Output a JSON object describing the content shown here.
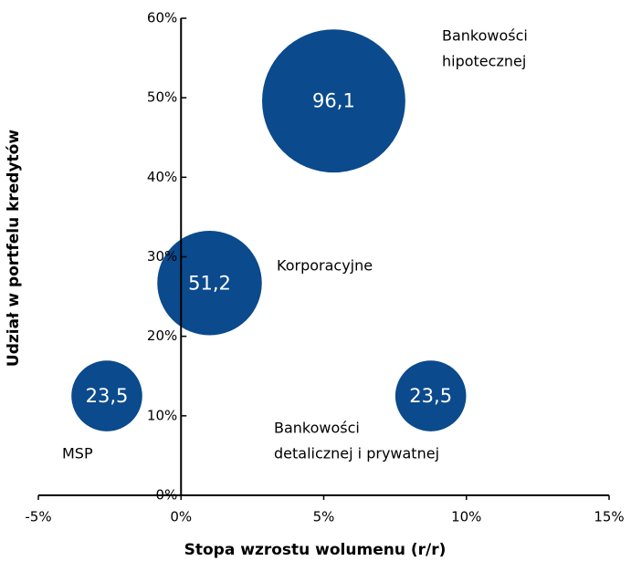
{
  "chart_data": {
    "type": "bubble",
    "x_label": "Stopa wzrostu wolumenu (r/r)",
    "y_label": "Udział w portfelu kredytów",
    "labels": [
      [
        "Bankowości",
        "hipotecznej"
      ],
      [
        "Korporacyjne"
      ],
      [
        "MSP"
      ],
      [
        "Bankowości",
        "detalicznej i prywatnej"
      ]
    ],
    "x": [
      5.35,
      1.0,
      -2.6,
      8.75
    ],
    "values": [
      49.6,
      26.7,
      12.5,
      12.5
    ],
    "sizes": [
      96.1,
      51.2,
      23.5,
      23.5
    ],
    "value_labels": [
      "96,1",
      "51,2",
      "23,5",
      "23,5"
    ],
    "color": "#0b4a8c",
    "xlim": [
      -5,
      15
    ],
    "xticks": [
      {
        "value": -5,
        "label": "-5%"
      },
      {
        "value": 0,
        "label": "0%"
      },
      {
        "value": 5,
        "label": "5%"
      },
      {
        "value": 10,
        "label": "10%"
      },
      {
        "value": 15,
        "label": "15%"
      }
    ],
    "ylim": [
      0,
      60
    ],
    "yticks": [
      {
        "value": 0,
        "label": "0%"
      },
      {
        "value": 10,
        "label": "10%"
      },
      {
        "value": 20,
        "label": "20%"
      },
      {
        "value": 30,
        "label": "30%"
      },
      {
        "value": 40,
        "label": "40%"
      },
      {
        "value": 50,
        "label": "50%"
      },
      {
        "value": 60,
        "label": "60%"
      }
    ]
  }
}
